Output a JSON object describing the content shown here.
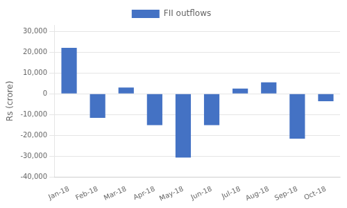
{
  "chart_data": {
    "type": "bar",
    "categories": [
      "Jan-18",
      "Feb-18",
      "Mar-18",
      "Apr-18",
      "May-18",
      "Jun-18",
      "Jul-18",
      "Aug-18",
      "Sep-18",
      "Oct-18"
    ],
    "series": [
      {
        "name": "FII outflows",
        "color": "#4472C4",
        "values": [
          22000,
          -11500,
          3000,
          -15000,
          -30500,
          -15000,
          2500,
          5500,
          -21500,
          -3500
        ]
      }
    ],
    "ylabel": "Rs (crore)",
    "ylim": [
      -40000,
      33000
    ],
    "yticks": [
      {
        "value": -40000,
        "label": "-40,000"
      },
      {
        "value": -30000,
        "label": "-30,000"
      },
      {
        "value": -20000,
        "label": "-20,000"
      },
      {
        "value": -10000,
        "label": "-10,000"
      },
      0,
      {
        "value": 10000,
        "label": "10,000"
      },
      {
        "value": 20000,
        "label": "20,000"
      },
      {
        "value": 30000,
        "label": "30,000"
      }
    ],
    "grid": true,
    "legend": "top"
  }
}
